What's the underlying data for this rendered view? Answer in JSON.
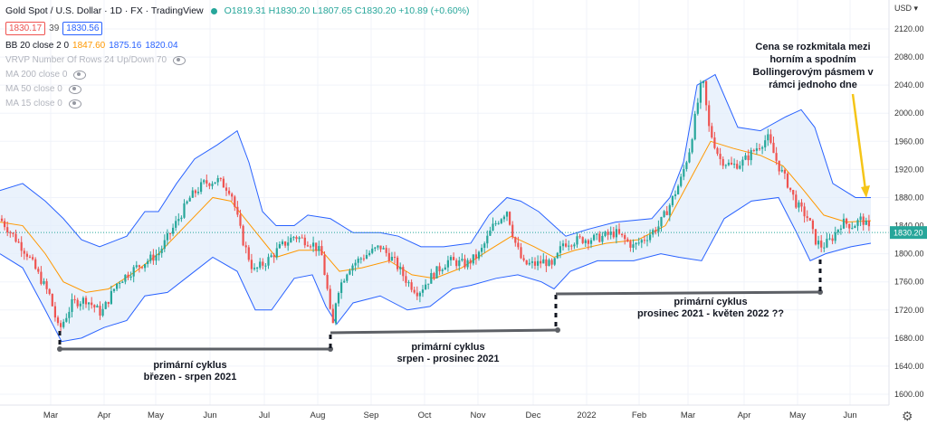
{
  "header": {
    "title": "Gold Spot / U.S. Dollar · 1D · FX · TradingView",
    "ohlc": "O1819.31 H1830.20 L1807.65 C1830.20 +10.89 (+0.60%)",
    "bid": "1830.17",
    "spread": "39",
    "ask": "1830.56",
    "currency": "USD"
  },
  "indicators": [
    {
      "label": "BB 20 close 2 0",
      "v1": "1847.60",
      "v2": "1875.16",
      "v3": "1820.04"
    },
    {
      "label": "VRVP Number Of Rows 24 Up/Down 70"
    },
    {
      "label": "MA 200 close 0"
    },
    {
      "label": "MA 50 close 0"
    },
    {
      "label": "MA 15 close 0"
    }
  ],
  "colors": {
    "up": "#26a69a",
    "down": "#ef5350",
    "bb_band": "#2962ff",
    "bb_fill": "#e3eefb",
    "basis": "#ff9800",
    "annotation_line": "#5d6066",
    "arrow": "#f5c518",
    "last_price_bg": "#26a69a"
  },
  "chart_data": {
    "type": "candlestick",
    "y_axis": {
      "ticks": [
        2120,
        2080,
        2040,
        2000,
        1960,
        1920,
        1880,
        1840,
        1800,
        1760,
        1720,
        1680,
        1640,
        1600
      ],
      "ylim": [
        1592,
        2150
      ],
      "last_price": 1830.2,
      "last_price_label": "1830.20"
    },
    "x_axis": {
      "labels": [
        "Mar",
        "Apr",
        "May",
        "Jun",
        "Jul",
        "Aug",
        "Sep",
        "Oct",
        "Nov",
        "Dec",
        "2022",
        "Feb",
        "Mar",
        "Apr",
        "May",
        "Jun"
      ],
      "label_x": [
        56,
        115,
        172,
        232,
        292,
        351,
        410,
        469,
        528,
        589,
        648,
        706,
        760,
        822,
        881,
        939
      ]
    },
    "price_path": [
      [
        0,
        1850
      ],
      [
        30,
        1800
      ],
      [
        55,
        1740
      ],
      [
        65,
        1690
      ],
      [
        80,
        1730
      ],
      [
        95,
        1735
      ],
      [
        112,
        1715
      ],
      [
        130,
        1760
      ],
      [
        150,
        1780
      ],
      [
        175,
        1800
      ],
      [
        195,
        1845
      ],
      [
        210,
        1880
      ],
      [
        225,
        1900
      ],
      [
        240,
        1905
      ],
      [
        255,
        1890
      ],
      [
        268,
        1820
      ],
      [
        280,
        1775
      ],
      [
        295,
        1790
      ],
      [
        310,
        1810
      ],
      [
        325,
        1825
      ],
      [
        345,
        1815
      ],
      [
        355,
        1800
      ],
      [
        362,
        1745
      ],
      [
        367,
        1690
      ],
      [
        372,
        1745
      ],
      [
        385,
        1780
      ],
      [
        400,
        1795
      ],
      [
        420,
        1810
      ],
      [
        435,
        1790
      ],
      [
        450,
        1760
      ],
      [
        462,
        1745
      ],
      [
        478,
        1770
      ],
      [
        495,
        1790
      ],
      [
        515,
        1785
      ],
      [
        530,
        1800
      ],
      [
        545,
        1840
      ],
      [
        560,
        1862
      ],
      [
        568,
        1820
      ],
      [
        578,
        1785
      ],
      [
        592,
        1785
      ],
      [
        602,
        1790
      ],
      [
        610,
        1780
      ],
      [
        622,
        1815
      ],
      [
        640,
        1820
      ],
      [
        660,
        1822
      ],
      [
        680,
        1830
      ],
      [
        700,
        1810
      ],
      [
        715,
        1825
      ],
      [
        728,
        1840
      ],
      [
        740,
        1870
      ],
      [
        752,
        1905
      ],
      [
        762,
        1950
      ],
      [
        770,
        2010
      ],
      [
        776,
        2050
      ],
      [
        783,
        1980
      ],
      [
        795,
        1935
      ],
      [
        808,
        1925
      ],
      [
        820,
        1930
      ],
      [
        835,
        1950
      ],
      [
        848,
        1965
      ],
      [
        860,
        1925
      ],
      [
        870,
        1900
      ],
      [
        880,
        1870
      ],
      [
        893,
        1850
      ],
      [
        900,
        1820
      ],
      [
        908,
        1810
      ],
      [
        918,
        1820
      ],
      [
        930,
        1845
      ],
      [
        942,
        1840
      ],
      [
        952,
        1850
      ],
      [
        962,
        1830
      ]
    ],
    "bb_upper": [
      [
        0,
        1890
      ],
      [
        25,
        1900
      ],
      [
        50,
        1875
      ],
      [
        70,
        1850
      ],
      [
        90,
        1820
      ],
      [
        110,
        1810
      ],
      [
        140,
        1825
      ],
      [
        160,
        1860
      ],
      [
        175,
        1860
      ],
      [
        195,
        1900
      ],
      [
        215,
        1935
      ],
      [
        240,
        1955
      ],
      [
        262,
        1975
      ],
      [
        275,
        1930
      ],
      [
        290,
        1860
      ],
      [
        305,
        1840
      ],
      [
        325,
        1840
      ],
      [
        340,
        1855
      ],
      [
        365,
        1850
      ],
      [
        390,
        1830
      ],
      [
        420,
        1830
      ],
      [
        440,
        1825
      ],
      [
        465,
        1810
      ],
      [
        490,
        1810
      ],
      [
        520,
        1815
      ],
      [
        540,
        1855
      ],
      [
        560,
        1880
      ],
      [
        575,
        1875
      ],
      [
        595,
        1860
      ],
      [
        612,
        1840
      ],
      [
        625,
        1825
      ],
      [
        650,
        1835
      ],
      [
        680,
        1845
      ],
      [
        720,
        1850
      ],
      [
        740,
        1880
      ],
      [
        755,
        1930
      ],
      [
        770,
        2040
      ],
      [
        790,
        2055
      ],
      [
        815,
        1980
      ],
      [
        840,
        1975
      ],
      [
        868,
        1995
      ],
      [
        885,
        2005
      ],
      [
        900,
        1980
      ],
      [
        920,
        1900
      ],
      [
        945,
        1880
      ],
      [
        962,
        1880
      ]
    ],
    "bb_lower": [
      [
        0,
        1800
      ],
      [
        25,
        1780
      ],
      [
        50,
        1720
      ],
      [
        68,
        1675
      ],
      [
        90,
        1680
      ],
      [
        115,
        1695
      ],
      [
        140,
        1705
      ],
      [
        160,
        1740
      ],
      [
        185,
        1745
      ],
      [
        210,
        1770
      ],
      [
        235,
        1795
      ],
      [
        262,
        1775
      ],
      [
        282,
        1720
      ],
      [
        300,
        1720
      ],
      [
        325,
        1765
      ],
      [
        345,
        1770
      ],
      [
        360,
        1725
      ],
      [
        372,
        1700
      ],
      [
        390,
        1730
      ],
      [
        420,
        1740
      ],
      [
        450,
        1720
      ],
      [
        475,
        1725
      ],
      [
        500,
        1750
      ],
      [
        520,
        1755
      ],
      [
        548,
        1765
      ],
      [
        572,
        1770
      ],
      [
        598,
        1760
      ],
      [
        612,
        1750
      ],
      [
        630,
        1775
      ],
      [
        660,
        1790
      ],
      [
        700,
        1790
      ],
      [
        730,
        1800
      ],
      [
        750,
        1795
      ],
      [
        775,
        1790
      ],
      [
        800,
        1850
      ],
      [
        830,
        1875
      ],
      [
        860,
        1880
      ],
      [
        880,
        1830
      ],
      [
        895,
        1790
      ],
      [
        912,
        1800
      ],
      [
        940,
        1810
      ],
      [
        962,
        1815
      ]
    ],
    "bb_basis": [
      [
        0,
        1845
      ],
      [
        25,
        1840
      ],
      [
        50,
        1800
      ],
      [
        70,
        1760
      ],
      [
        95,
        1745
      ],
      [
        120,
        1750
      ],
      [
        150,
        1775
      ],
      [
        175,
        1800
      ],
      [
        205,
        1840
      ],
      [
        235,
        1880
      ],
      [
        255,
        1875
      ],
      [
        280,
        1835
      ],
      [
        305,
        1795
      ],
      [
        330,
        1805
      ],
      [
        355,
        1805
      ],
      [
        375,
        1775
      ],
      [
        400,
        1780
      ],
      [
        430,
        1790
      ],
      [
        455,
        1770
      ],
      [
        480,
        1765
      ],
      [
        510,
        1780
      ],
      [
        540,
        1805
      ],
      [
        565,
        1825
      ],
      [
        590,
        1810
      ],
      [
        612,
        1795
      ],
      [
        635,
        1805
      ],
      [
        670,
        1815
      ],
      [
        705,
        1820
      ],
      [
        735,
        1840
      ],
      [
        760,
        1900
      ],
      [
        785,
        1960
      ],
      [
        810,
        1950
      ],
      [
        840,
        1940
      ],
      [
        865,
        1925
      ],
      [
        888,
        1890
      ],
      [
        910,
        1855
      ],
      [
        935,
        1845
      ],
      [
        962,
        1847
      ]
    ],
    "annotations": [
      {
        "text": "primární cyklus",
        "line2": "březen - srpen 2021"
      },
      {
        "text": "primární cyklus",
        "line2": "srpen - prosinec 2021"
      },
      {
        "text": "primární cyklus",
        "line2": "prosinec 2021 - květen 2022 ??"
      },
      {
        "text": "Cena se rozkmitala mezi",
        "line2": "horním a spodním",
        "line3": "Bollingerovým pásmem v",
        "line4": "rámci jednoho dne"
      }
    ]
  }
}
